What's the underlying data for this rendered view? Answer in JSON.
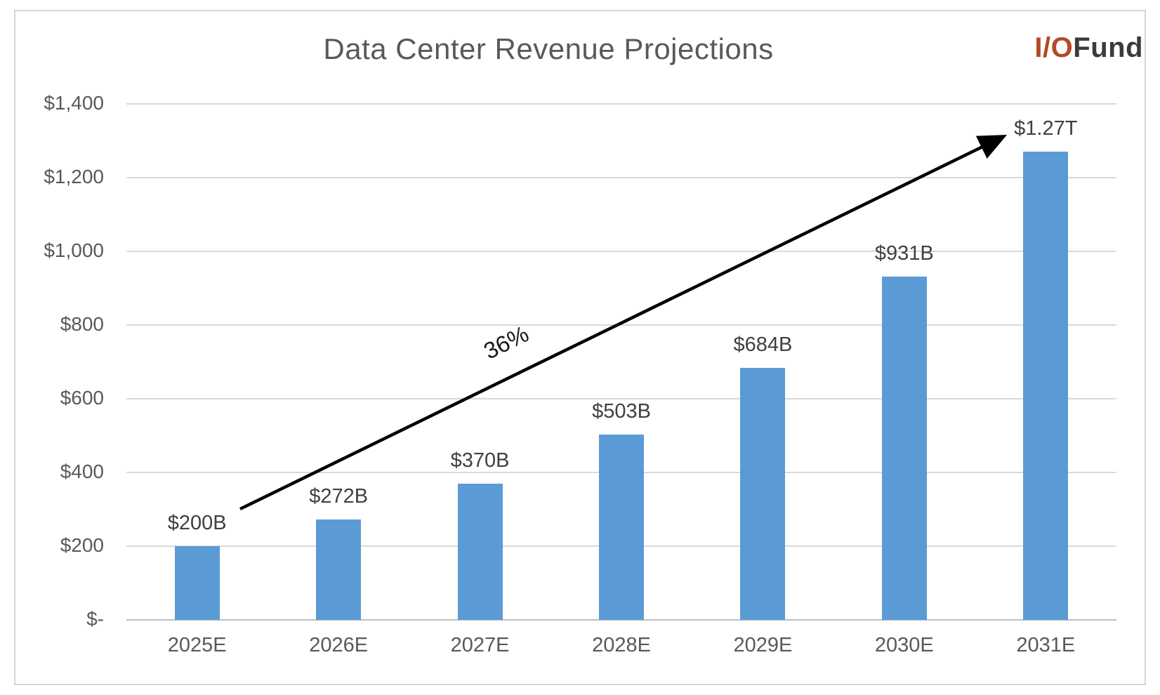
{
  "header": {
    "title": "Data Center Revenue Projections",
    "logo": {
      "part1": "I/O",
      "part2": "Fund",
      "part1_color": "#b04a27",
      "part2_color": "#3b3b3b"
    }
  },
  "chart_data": {
    "type": "bar",
    "title": "Data Center Revenue Projections",
    "categories": [
      "2025E",
      "2026E",
      "2027E",
      "2028E",
      "2029E",
      "2030E",
      "2031E"
    ],
    "values": [
      200,
      272,
      370,
      503,
      684,
      931,
      1270
    ],
    "bar_labels": [
      "$200B",
      "$272B",
      "$370B",
      "$503B",
      "$684B",
      "$931B",
      "$1.27T"
    ],
    "units": "billions USD",
    "y_ticks": [
      {
        "value": 0,
        "label": "$-"
      },
      {
        "value": 200,
        "label": "$200"
      },
      {
        "value": 400,
        "label": "$400"
      },
      {
        "value": 600,
        "label": "$600"
      },
      {
        "value": 800,
        "label": "$800"
      },
      {
        "value": 1000,
        "label": "$1,000"
      },
      {
        "value": 1200,
        "label": "$1,200"
      },
      {
        "value": 1400,
        "label": "$1,400"
      }
    ],
    "ylim": [
      0,
      1400
    ],
    "xlabel": "",
    "ylabel": "",
    "grid": true,
    "legend": false,
    "bar_color": "#5b9bd5",
    "gridline_color": "#d9d9d9",
    "annotation": {
      "label": "36%",
      "description": "growth trend arrow from 2025E bar to 2031E value"
    }
  }
}
